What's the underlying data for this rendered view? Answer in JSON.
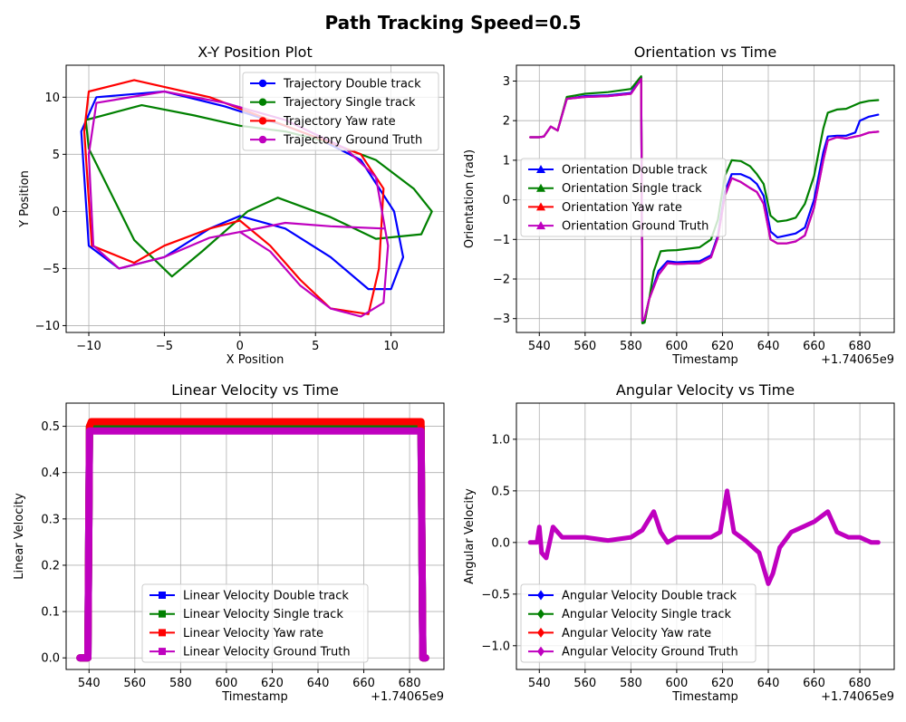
{
  "figure": {
    "suptitle": "Path Tracking Speed=0.5"
  },
  "chart_data": [
    {
      "type": "line",
      "title": "X-Y Position Plot",
      "xlabel": "X Position",
      "ylabel": "Y Position",
      "xlim": [
        -11.5,
        13.5
      ],
      "ylim": [
        -10.6,
        12.8
      ],
      "xticks": [
        -10,
        -5,
        0,
        5,
        10
      ],
      "yticks": [
        -10,
        -5,
        0,
        5,
        10
      ],
      "grid": true,
      "legend_position": "upper right",
      "marker": "circle",
      "series": [
        {
          "name": "Trajectory Double track",
          "color": "#0000ff",
          "x": [
            0,
            3,
            6,
            8.5,
            10,
            10.8,
            10.2,
            8,
            5,
            3,
            -1,
            -5,
            -9.5,
            -10.5,
            -10,
            -8,
            -5,
            -2,
            0
          ],
          "y": [
            -0.4,
            -1.5,
            -4,
            -6.8,
            -6.8,
            -4,
            0,
            4.5,
            6.5,
            7.5,
            9.2,
            10.5,
            10,
            7,
            -3,
            -5,
            -4,
            -1.5,
            -0.4
          ]
        },
        {
          "name": "Trajectory Single track",
          "color": "#008000",
          "x": [
            2.5,
            6,
            9,
            12,
            12.7,
            11.5,
            9,
            6,
            3,
            0,
            -3,
            -6.5,
            -10.2,
            -10,
            -7,
            -4.5,
            -2.5,
            0.5,
            2.5
          ],
          "y": [
            1.2,
            -0.5,
            -2.4,
            -2,
            0,
            2,
            4.5,
            6,
            7,
            7.5,
            8.4,
            9.3,
            8,
            5.5,
            -2.5,
            -5.7,
            -3.5,
            0,
            1.2
          ]
        },
        {
          "name": "Trajectory Yaw rate",
          "color": "#ff0000",
          "x": [
            0,
            2,
            4,
            6,
            8.5,
            9.2,
            9.5,
            8,
            5,
            2,
            -2,
            -7,
            -10,
            -10.3,
            -9.8,
            -7,
            -5,
            -2,
            0
          ],
          "y": [
            -0.8,
            -3,
            -6,
            -8.5,
            -9,
            -5,
            2,
            5,
            6.5,
            8,
            10,
            11.5,
            10.5,
            7,
            -3,
            -4.5,
            -3,
            -1.5,
            -0.8
          ]
        },
        {
          "name": "Trajectory Ground Truth",
          "color": "#bf00bf",
          "x": [
            0,
            2,
            4,
            6,
            8,
            9.5,
            9.8,
            9,
            7,
            3,
            -1,
            -5,
            -9.5,
            -10,
            -9.7,
            -8,
            -5,
            -2,
            0,
            3,
            6,
            9.6
          ],
          "y": [
            -1.8,
            -3.5,
            -6.5,
            -8.5,
            -9.2,
            -8,
            -3,
            3,
            5.5,
            8,
            9.5,
            10.5,
            9.5,
            5,
            -3,
            -5,
            -4,
            -2.3,
            -1.8,
            -1,
            -1.3,
            -1.5
          ]
        }
      ]
    },
    {
      "type": "line",
      "title": "Orientation vs Time",
      "xlabel": "Timestamp",
      "ylabel": "Orientation (rad)",
      "axis_offset_label": "+1.74065e9",
      "xlim": [
        530,
        695
      ],
      "ylim": [
        -3.35,
        3.4
      ],
      "xticks": [
        540,
        560,
        580,
        600,
        620,
        640,
        660,
        680
      ],
      "yticks": [
        -3,
        -2,
        -1,
        0,
        1,
        2,
        3
      ],
      "grid": true,
      "legend_position": "center left",
      "marker": "triangle",
      "series": [
        {
          "name": "Orientation Double track",
          "color": "#0000ff",
          "x": [
            536,
            540,
            542,
            545,
            548,
            552,
            560,
            570,
            580,
            584.5,
            585,
            586,
            588,
            592,
            596,
            600,
            610,
            615,
            618,
            621,
            624,
            628,
            632,
            635,
            638,
            641,
            644,
            648,
            652,
            656,
            660,
            664,
            666,
            670,
            674,
            678,
            680,
            684,
            688
          ],
          "y": [
            1.58,
            1.58,
            1.6,
            1.85,
            1.75,
            2.55,
            2.62,
            2.64,
            2.7,
            3.1,
            -3.1,
            -3.0,
            -2.5,
            -1.8,
            -1.55,
            -1.58,
            -1.55,
            -1.4,
            -0.9,
            0.2,
            0.65,
            0.65,
            0.55,
            0.4,
            0.1,
            -0.8,
            -0.95,
            -0.9,
            -0.85,
            -0.7,
            0.0,
            1.2,
            1.6,
            1.62,
            1.62,
            1.7,
            2.0,
            2.1,
            2.15
          ]
        },
        {
          "name": "Orientation Single track",
          "color": "#008000",
          "x": [
            536,
            540,
            542,
            545,
            548,
            552,
            560,
            570,
            580,
            584.5,
            585,
            586,
            588,
            590,
            593,
            596,
            600,
            610,
            615,
            618,
            621,
            624,
            628,
            632,
            635,
            638,
            641,
            644,
            648,
            652,
            656,
            660,
            664,
            666,
            670,
            674,
            678,
            680,
            684,
            688
          ],
          "y": [
            1.58,
            1.58,
            1.6,
            1.85,
            1.75,
            2.6,
            2.68,
            2.72,
            2.8,
            3.12,
            -3.12,
            -3.1,
            -2.5,
            -1.8,
            -1.3,
            -1.28,
            -1.27,
            -1.2,
            -1.0,
            -0.5,
            0.6,
            1.0,
            0.98,
            0.85,
            0.65,
            0.4,
            -0.4,
            -0.55,
            -0.52,
            -0.45,
            -0.1,
            0.6,
            1.8,
            2.2,
            2.28,
            2.3,
            2.4,
            2.45,
            2.5,
            2.52
          ]
        },
        {
          "name": "Orientation Yaw rate",
          "color": "#ff0000",
          "x": [
            536,
            540,
            542,
            545,
            548,
            552,
            560,
            570,
            580,
            584.5,
            585,
            586,
            588,
            592,
            596,
            600,
            610,
            615,
            618,
            621,
            624,
            628,
            632,
            635,
            638,
            641,
            644,
            648,
            652,
            656,
            660,
            664,
            666,
            670,
            674,
            678,
            680,
            684,
            688
          ],
          "y": [
            1.58,
            1.58,
            1.6,
            1.85,
            1.75,
            2.55,
            2.6,
            2.62,
            2.68,
            3.05,
            -3.05,
            -3.0,
            -2.5,
            -1.9,
            -1.6,
            -1.62,
            -1.6,
            -1.45,
            -0.95,
            0.1,
            0.55,
            0.45,
            0.3,
            0.2,
            -0.1,
            -1.0,
            -1.1,
            -1.1,
            -1.05,
            -0.9,
            -0.2,
            1.0,
            1.5,
            1.58,
            1.55,
            1.6,
            1.62,
            1.7,
            1.72
          ]
        },
        {
          "name": "Orientation Ground Truth",
          "color": "#bf00bf",
          "x": [
            536,
            540,
            542,
            545,
            548,
            552,
            560,
            570,
            580,
            584.5,
            585,
            586,
            588,
            592,
            596,
            600,
            610,
            615,
            618,
            621,
            624,
            628,
            632,
            635,
            638,
            641,
            644,
            648,
            652,
            656,
            660,
            664,
            666,
            670,
            674,
            678,
            680,
            684,
            688
          ],
          "y": [
            1.58,
            1.58,
            1.6,
            1.85,
            1.75,
            2.55,
            2.6,
            2.62,
            2.68,
            3.05,
            -3.05,
            -3.0,
            -2.5,
            -1.9,
            -1.6,
            -1.62,
            -1.6,
            -1.45,
            -0.95,
            0.1,
            0.55,
            0.45,
            0.3,
            0.2,
            -0.1,
            -1.0,
            -1.1,
            -1.1,
            -1.05,
            -0.9,
            -0.2,
            1.0,
            1.5,
            1.58,
            1.55,
            1.6,
            1.62,
            1.7,
            1.72
          ]
        }
      ]
    },
    {
      "type": "line",
      "title": "Linear Velocity vs Time",
      "xlabel": "Timestamp",
      "ylabel": "Linear Velocity",
      "axis_offset_label": "+1.74065e9",
      "xlim": [
        530,
        695
      ],
      "ylim": [
        -0.025,
        0.55
      ],
      "xticks": [
        540,
        560,
        580,
        600,
        620,
        640,
        660,
        680
      ],
      "yticks": [
        0.0,
        0.1,
        0.2,
        0.3,
        0.4,
        0.5
      ],
      "grid": true,
      "legend_position": "lower center",
      "marker": "square",
      "series": [
        {
          "name": "Linear Velocity Double track",
          "color": "#0000ff",
          "x": [
            536,
            539.5,
            540.2,
            541,
            685,
            685.8,
            687
          ],
          "y": [
            0.0,
            0.0,
            0.5,
            0.5,
            0.5,
            0.0,
            0.0
          ]
        },
        {
          "name": "Linear Velocity Single track",
          "color": "#008000",
          "x": [
            536,
            539.5,
            540.2,
            541,
            685,
            685.8,
            687
          ],
          "y": [
            0.0,
            0.0,
            0.5,
            0.5,
            0.5,
            0.0,
            0.0
          ]
        },
        {
          "name": "Linear Velocity Yaw rate",
          "color": "#ff0000",
          "x": [
            536,
            539.5,
            540.2,
            541,
            685,
            685.8,
            687
          ],
          "y": [
            0.0,
            0.0,
            0.5,
            0.51,
            0.51,
            0.0,
            0.0
          ]
        },
        {
          "name": "Linear Velocity Ground Truth",
          "color": "#bf00bf",
          "x": [
            536,
            539.5,
            540.2,
            541,
            685,
            685.8,
            687
          ],
          "y": [
            0.0,
            0.0,
            0.49,
            0.49,
            0.49,
            0.0,
            0.0
          ]
        }
      ]
    },
    {
      "type": "line",
      "title": "Angular Velocity vs Time",
      "xlabel": "Timestamp",
      "ylabel": "Angular Velocity",
      "axis_offset_label": "+1.74065e9",
      "xlim": [
        530,
        695
      ],
      "ylim": [
        -1.23,
        1.35
      ],
      "xticks": [
        540,
        560,
        580,
        600,
        620,
        640,
        660,
        680
      ],
      "yticks": [
        -1.0,
        -0.5,
        0.0,
        0.5,
        1.0
      ],
      "grid": true,
      "legend_position": "lower left",
      "marker": "diamond",
      "series": [
        {
          "name": "Angular Velocity Double track",
          "color": "#0000ff",
          "x": [
            536,
            539,
            540,
            541,
            543,
            546,
            550,
            560,
            570,
            580,
            585,
            590,
            593,
            596,
            600,
            610,
            615,
            619,
            622,
            625,
            630,
            636,
            640,
            642,
            645,
            650,
            660,
            666,
            670,
            675,
            680,
            685,
            686.5,
            688
          ],
          "y": [
            0.0,
            0.0,
            0.15,
            -0.1,
            -0.15,
            0.15,
            0.05,
            0.05,
            0.02,
            0.05,
            0.12,
            0.3,
            0.1,
            0.0,
            0.05,
            0.05,
            0.05,
            0.1,
            0.5,
            0.1,
            0.02,
            -0.1,
            -0.4,
            -0.3,
            -0.05,
            0.1,
            0.2,
            0.3,
            0.1,
            0.05,
            0.05,
            0.0,
            0.0,
            0.0
          ]
        },
        {
          "name": "Angular Velocity Single track",
          "color": "#008000",
          "x": [
            536,
            539,
            540,
            541,
            543,
            546,
            550,
            560,
            570,
            580,
            585,
            590,
            593,
            596,
            600,
            610,
            615,
            619,
            622,
            625,
            630,
            636,
            640,
            642,
            645,
            650,
            660,
            666,
            670,
            675,
            680,
            685,
            686.5,
            688
          ],
          "y": [
            0.0,
            0.0,
            0.15,
            -0.1,
            -0.15,
            0.15,
            0.05,
            0.05,
            0.02,
            0.05,
            0.12,
            0.3,
            0.1,
            0.0,
            0.05,
            0.05,
            0.05,
            0.1,
            0.5,
            0.1,
            0.02,
            -0.1,
            -0.4,
            -0.3,
            -0.05,
            0.1,
            0.2,
            0.3,
            0.1,
            0.05,
            0.05,
            0.0,
            0.0,
            0.0
          ]
        },
        {
          "name": "Angular Velocity Yaw rate",
          "color": "#ff0000",
          "x": [
            536,
            539,
            540,
            541,
            543,
            546,
            550,
            560,
            570,
            580,
            585,
            590,
            593,
            596,
            600,
            610,
            615,
            619,
            622,
            625,
            630,
            636,
            640,
            642,
            645,
            650,
            660,
            666,
            670,
            675,
            680,
            685,
            686.5,
            688
          ],
          "y": [
            0.0,
            0.0,
            0.15,
            -0.1,
            -0.15,
            0.15,
            0.05,
            0.05,
            0.02,
            0.05,
            0.12,
            0.3,
            0.1,
            0.0,
            0.05,
            0.05,
            0.05,
            0.1,
            0.5,
            0.1,
            0.02,
            -0.1,
            -0.4,
            -0.3,
            -0.05,
            0.1,
            0.2,
            0.3,
            0.1,
            0.05,
            0.05,
            0.0,
            0.0,
            0.0
          ]
        },
        {
          "name": "Angular Velocity Ground Truth",
          "color": "#bf00bf",
          "x": [
            536,
            539,
            540,
            541,
            543,
            546,
            550,
            560,
            570,
            580,
            585,
            590,
            593,
            596,
            600,
            610,
            615,
            619,
            622,
            625,
            630,
            636,
            640,
            642,
            645,
            650,
            660,
            666,
            670,
            675,
            680,
            685,
            686.5,
            688
          ],
          "y": [
            0.0,
            0.0,
            0.15,
            -0.1,
            -0.15,
            0.15,
            0.05,
            0.05,
            0.02,
            0.05,
            0.12,
            0.3,
            0.1,
            0.0,
            0.05,
            0.05,
            0.05,
            0.1,
            0.5,
            0.1,
            0.02,
            -0.1,
            -0.4,
            -0.3,
            -0.05,
            0.1,
            0.2,
            0.3,
            0.1,
            0.05,
            0.05,
            0.0,
            0.0,
            0.0
          ]
        }
      ]
    }
  ]
}
